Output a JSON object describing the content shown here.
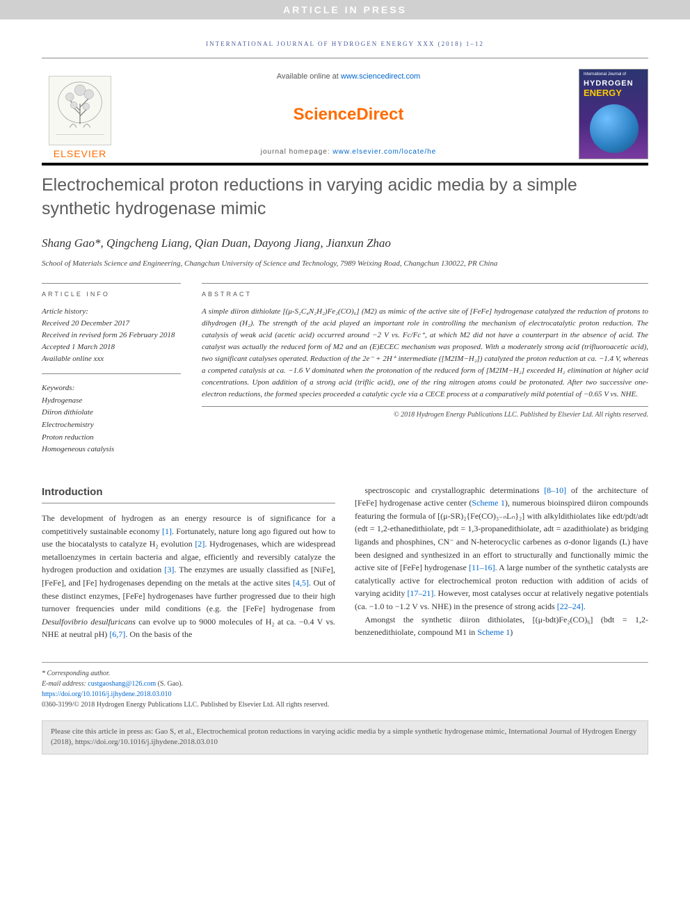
{
  "banner": "ARTICLE IN PRESS",
  "journal_header_line": "INTERNATIONAL JOURNAL OF HYDROGEN ENERGY XXX (2018) 1–12",
  "header": {
    "available_prefix": "Available online at ",
    "available_url": "www.sciencedirect.com",
    "sciencedirect": "ScienceDirect",
    "homepage_prefix": "journal homepage: ",
    "homepage_url": "www.elsevier.com/locate/he",
    "elsevier_label": "ELSEVIER",
    "cover_top": "International Journal of",
    "cover_title": "HYDROGEN",
    "cover_subtitle": "ENERGY"
  },
  "title": "Electrochemical proton reductions in varying acidic media by a simple synthetic hydrogenase mimic",
  "authors": "Shang Gao*, Qingcheng Liang, Qian Duan, Dayong Jiang, Jianxun Zhao",
  "affiliation": "School of Materials Science and Engineering, Changchun University of Science and Technology, 7989 Weixing Road, Changchun 130022, PR China",
  "article_info": {
    "heading": "ARTICLE INFO",
    "history_label": "Article history:",
    "received": "Received 20 December 2017",
    "revised": "Received in revised form 26 February 2018",
    "accepted": "Accepted 1 March 2018",
    "online": "Available online xxx",
    "keywords_label": "Keywords:",
    "keywords": [
      "Hydrogenase",
      "Diiron dithiolate",
      "Electrochemistry",
      "Proton reduction",
      "Homogeneous catalysis"
    ]
  },
  "abstract": {
    "heading": "ABSTRACT",
    "text": "A simple diiron dithiolate [(μ-S₂C₄N₂H₂)Fe₂(CO)₆] (M2) as mimic of the active site of [FeFe] hydrogenase catalyzed the reduction of protons to dihydrogen (H₂). The strength of the acid played an important role in controlling the mechanism of electrocatalytic proton reduction. The catalysis of weak acid (acetic acid) occurred around −2 V vs. Fc/Fc⁺, at which M2 did not have a counterpart in the absence of acid. The catalyst was actually the reduced form of M2 and an (E)ECEC mechanism was proposed. With a moderately strong acid (trifluoroacetic acid), two significant catalyses operated. Reduction of the 2e⁻ + 2H⁺ intermediate ([M2IM−H₂]) catalyzed the proton reduction at ca. −1.4 V, whereas a competed catalysis at ca. −1.6 V dominated when the protonation of the reduced form of [M2IM−H₂] exceeded H₂ elimination at higher acid concentrations. Upon addition of a strong acid (triflic acid), one of the ring nitrogen atoms could be protonated. After two successive one-electron reductions, the formed species proceeded a catalytic cycle via a CECE process at a comparatively mild potential of −0.65 V vs. NHE.",
    "copyright": "© 2018 Hydrogen Energy Publications LLC. Published by Elsevier Ltd. All rights reserved."
  },
  "body": {
    "section_heading": "Introduction",
    "para1": "The development of hydrogen as an energy resource is of significance for a competitively sustainable economy [1]. Fortunately, nature long ago figured out how to use the biocatalysts to catalyze H₂ evolution [2]. Hydrogenases, which are widespread metalloenzymes in certain bacteria and algae, efficiently and reversibly catalyze the hydrogen production and oxidation [3]. The enzymes are usually classified as [NiFe], [FeFe], and [Fe] hydrogenases depending on the metals at the active sites [4,5]. Out of these distinct enzymes, [FeFe] hydrogenases have further progressed due to their high turnover frequencies under mild conditions (e.g. the [FeFe] hydrogenase from Desulfovibrio desulfuricans can evolve up to 9000 molecules of H₂ at ca. −0.4 V vs. NHE at neutral pH) [6,7]. On the basis of the",
    "para2": "spectroscopic and crystallographic determinations [8–10] of the architecture of [FeFe] hydrogenase active center (Scheme 1), numerous bioinspired diiron compounds featuring the formula of [(μ-SR)₂{Fe(CO)₃₋ₙLₙ}₂] with alkyldithiolates like edt/pdt/adt (edt = 1,2-ethanedithiolate, pdt = 1,3-propanedithiolate, adt = azadithiolate) as bridging ligands and phosphines, CN⁻ and N-heterocyclic carbenes as σ-donor ligands (L) have been designed and synthesized in an effort to structurally and functionally mimic the active site of [FeFe] hydrogenase [11–16]. A large number of the synthetic catalysts are catalytically active for electrochemical proton reduction with addition of acids of varying acidity [17–21]. However, most catalyses occur at relatively negative potentials (ca. −1.0 to −1.2 V vs. NHE) in the presence of strong acids [22–24].",
    "para3": "Amongst the synthetic diiron dithiolates, [(μ-bdt)Fe₂(CO)₆] (bdt = 1,2-benzenedithiolate, compound M1 in Scheme 1)"
  },
  "footer": {
    "corresponding": "* Corresponding author.",
    "email_label": "E-mail address: ",
    "email": "custgaoshang@126.com",
    "email_suffix": " (S. Gao).",
    "doi": "https://doi.org/10.1016/j.ijhydene.2018.03.010",
    "issn_line": "0360-3199/© 2018 Hydrogen Energy Publications LLC. Published by Elsevier Ltd. All rights reserved."
  },
  "cite": "Please cite this article in press as: Gao S, et al., Electrochemical proton reductions in varying acidic media by a simple synthetic hydrogenase mimic, International Journal of Hydrogen Energy (2018), https://doi.org/10.1016/j.ijhydene.2018.03.010",
  "colors": {
    "orange": "#ff6c00",
    "link": "#0066cc",
    "banner_bg": "#d0d0d0",
    "journal_line": "#4a5a9a"
  }
}
